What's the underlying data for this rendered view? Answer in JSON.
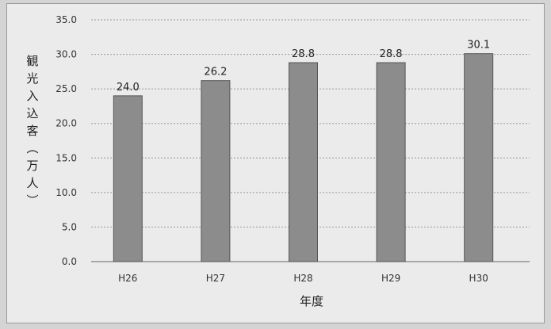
{
  "chart_data": {
    "type": "bar",
    "categories": [
      "H26",
      "H27",
      "H28",
      "H29",
      "H30"
    ],
    "values": [
      24.0,
      26.2,
      28.8,
      28.8,
      30.1
    ],
    "data_labels": [
      "24.0",
      "26.2",
      "28.8",
      "28.8",
      "30.1"
    ],
    "title": "",
    "xlabel": "年度",
    "ylabel": "観光入込客(万人)",
    "ylim": [
      0,
      35
    ],
    "yticks": [
      "0.0",
      "5.0",
      "10.0",
      "15.0",
      "20.0",
      "25.0",
      "30.0",
      "35.0"
    ],
    "grid": true,
    "legend": "none",
    "colors": {
      "bar": "#8c8c8c",
      "bar_edge": "#555555",
      "grid": "#9a9a9a",
      "axis": "#666666"
    }
  }
}
